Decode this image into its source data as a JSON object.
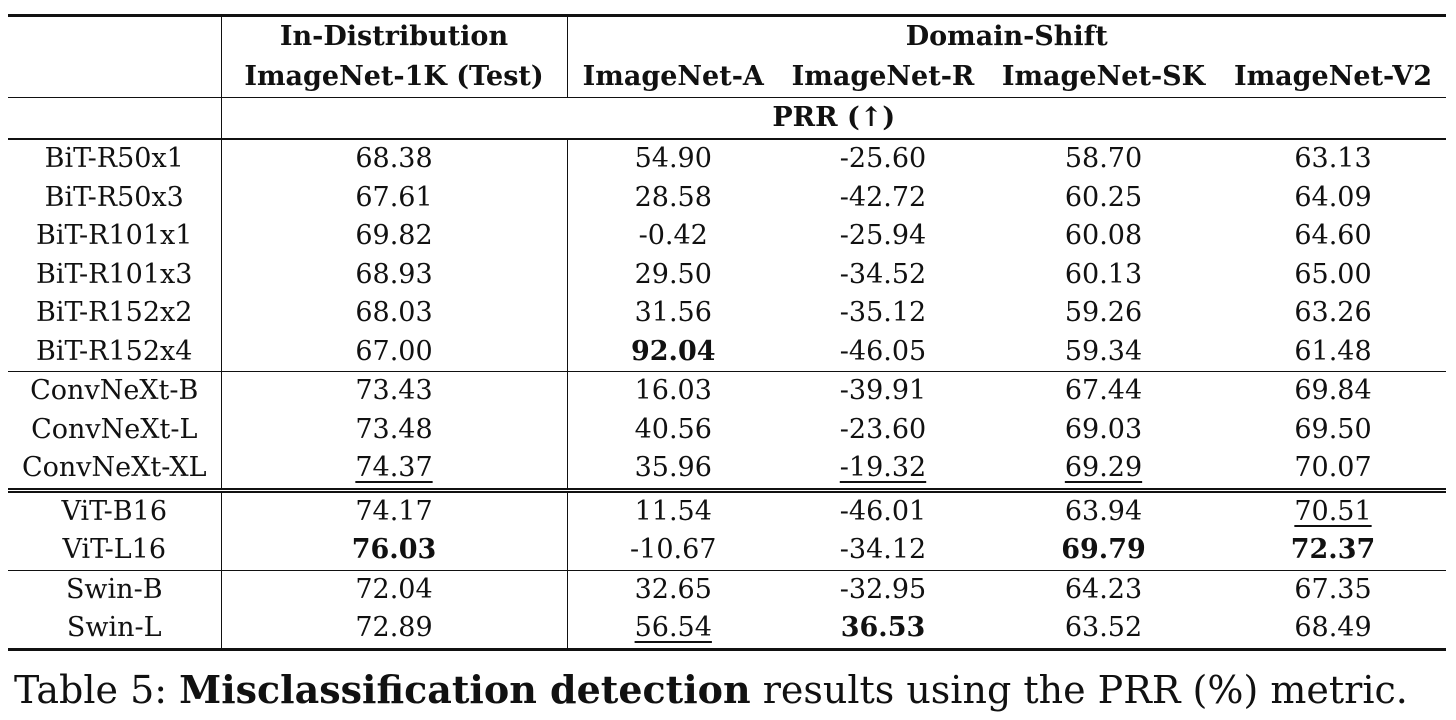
{
  "header": {
    "group_in": "In-Distribution",
    "group_shift": "Domain-Shift",
    "columns": [
      "ImageNet-1K (Test)",
      "ImageNet-A",
      "ImageNet-R",
      "ImageNet-SK",
      "ImageNet-V2"
    ],
    "metric": "PRR (↑)"
  },
  "rows": [
    {
      "model": "BiT-R50x1",
      "vals": [
        "68.38",
        "54.90",
        "-25.60",
        "58.70",
        "63.13"
      ]
    },
    {
      "model": "BiT-R50x3",
      "vals": [
        "67.61",
        "28.58",
        "-42.72",
        "60.25",
        "64.09"
      ]
    },
    {
      "model": "BiT-R101x1",
      "vals": [
        "69.82",
        "-0.42",
        "-25.94",
        "60.08",
        "64.60"
      ]
    },
    {
      "model": "BiT-R101x3",
      "vals": [
        "68.93",
        "29.50",
        "-34.52",
        "60.13",
        "65.00"
      ]
    },
    {
      "model": "BiT-R152x2",
      "vals": [
        "68.03",
        "31.56",
        "-35.12",
        "59.26",
        "63.26"
      ]
    },
    {
      "model": "BiT-R152x4",
      "vals": [
        "67.00",
        "92.04",
        "-46.05",
        "59.34",
        "61.48"
      ]
    },
    {
      "model": "ConvNeXt-B",
      "vals": [
        "73.43",
        "16.03",
        "-39.91",
        "67.44",
        "69.84"
      ]
    },
    {
      "model": "ConvNeXt-L",
      "vals": [
        "73.48",
        "40.56",
        "-23.60",
        "69.03",
        "69.50"
      ]
    },
    {
      "model": "ConvNeXt-XL",
      "vals": [
        "74.37",
        "35.96",
        "-19.32",
        "69.29",
        "70.07"
      ]
    },
    {
      "model": "ViT-B16",
      "vals": [
        "74.17",
        "11.54",
        "-46.01",
        "63.94",
        "70.51"
      ]
    },
    {
      "model": "ViT-L16",
      "vals": [
        "76.03",
        "-10.67",
        "-34.12",
        "69.79",
        "72.37"
      ]
    },
    {
      "model": "Swin-B",
      "vals": [
        "72.04",
        "32.65",
        "-32.95",
        "64.23",
        "67.35"
      ]
    },
    {
      "model": "Swin-L",
      "vals": [
        "72.89",
        "56.54",
        "36.53",
        "63.52",
        "68.49"
      ]
    }
  ],
  "caption": {
    "prefix": "Table 5: ",
    "bold": "Misclassification detection",
    "suffix": " results using the PRR (%) metric."
  }
}
